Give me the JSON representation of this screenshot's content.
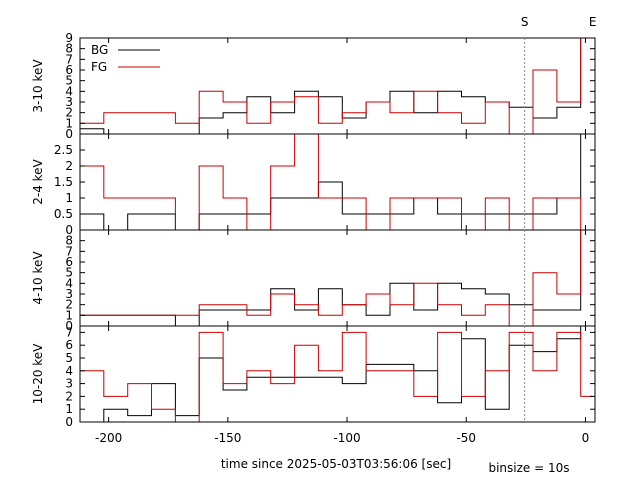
{
  "chart_data": {
    "type": "line",
    "step": true,
    "grid": false,
    "xlabel": "time since 2025-05-03T03:56:06 [sec]",
    "xlim": [
      -212,
      4
    ],
    "xticks": [
      -200,
      -150,
      -100,
      -50,
      0
    ],
    "binsize_label": "binsize = 10s",
    "markers": [
      {
        "label": "S",
        "x": -25.5,
        "style": "dotted",
        "color": "#888888"
      },
      {
        "label": "E",
        "x": 3
      }
    ],
    "legend": {
      "placement": "top-left",
      "panel": 0
    },
    "series_styles": [
      {
        "name": "BG",
        "color": "#000000"
      },
      {
        "name": "FG",
        "color": "#cc0000"
      }
    ],
    "panels": [
      {
        "ylabel": "3-10 keV",
        "ylim": [
          0,
          9
        ],
        "yticks": [
          0,
          1,
          2,
          3,
          4,
          5,
          6,
          7,
          8,
          9
        ],
        "series": [
          {
            "name": "BG",
            "edges": [
              -212,
              -202,
              -172,
              -162,
              -152,
              -142,
              -132,
              -122,
              -112,
              -102,
              -92,
              -82,
              -72,
              -62,
              -52,
              -42,
              -32,
              -22,
              -12,
              -2,
              3
            ],
            "values": [
              0.5,
              0,
              0,
              1.5,
              2,
              3.5,
              2,
              4,
              3.5,
              1.5,
              3,
              4,
              2,
              4,
              3.5,
              3,
              2.5,
              1.5,
              2.5,
              9
            ]
          },
          {
            "name": "FG",
            "edges": [
              -212,
              -202,
              -172,
              -162,
              -152,
              -142,
              -132,
              -122,
              -112,
              -102,
              -92,
              -82,
              -72,
              -62,
              -52,
              -42,
              -32,
              -22,
              -12,
              -2,
              3
            ],
            "values": [
              1,
              2,
              1,
              4,
              3,
              1,
              3,
              3.5,
              1,
              2,
              3,
              2,
              4,
              2,
              1,
              3,
              0,
              6,
              3,
              9
            ]
          }
        ]
      },
      {
        "ylabel": "2-4 keV",
        "ylim": [
          0,
          3
        ],
        "yticks": [
          0,
          0.5,
          1,
          1.5,
          2,
          2.5
        ],
        "series": [
          {
            "name": "BG",
            "edges": [
              -212,
              -202,
              -192,
              -172,
              -162,
              -142,
              -132,
              -112,
              -102,
              -92,
              -72,
              -62,
              -52,
              -42,
              -32,
              -22,
              -12,
              -2,
              3
            ],
            "values": [
              0.5,
              0,
              0.5,
              0,
              0.5,
              0.5,
              1,
              1.5,
              0.5,
              0.5,
              1,
              0.5,
              0.5,
              0.5,
              0.5,
              0.5,
              1,
              3
            ]
          },
          {
            "name": "FG",
            "edges": [
              -212,
              -202,
              -172,
              -162,
              -152,
              -142,
              -132,
              -122,
              -112,
              -102,
              -92,
              -82,
              -72,
              -62,
              -52,
              -42,
              -32,
              -22,
              -12,
              -2,
              3
            ],
            "values": [
              2,
              1,
              0,
              2,
              1,
              0,
              2,
              3,
              1,
              1,
              0,
              1,
              1,
              1,
              0,
              1,
              0,
              1,
              1,
              0
            ]
          }
        ]
      },
      {
        "ylabel": "4-10 keV",
        "ylim": [
          0,
          9
        ],
        "yticks": [
          0,
          1,
          2,
          3,
          4,
          5,
          6,
          7,
          8
        ],
        "series": [
          {
            "name": "BG",
            "edges": [
              -212,
              -172,
              -162,
              -142,
              -132,
              -122,
              -112,
              -102,
              -92,
              -82,
              -72,
              -62,
              -52,
              -42,
              -32,
              -22,
              -12,
              -2,
              3
            ],
            "values": [
              1,
              0,
              1.5,
              1.5,
              3.5,
              1.5,
              3.5,
              2,
              1,
              4,
              1.5,
              4,
              3.5,
              3,
              2,
              1.5,
              1.5,
              9
            ]
          },
          {
            "name": "FG",
            "edges": [
              -212,
              -162,
              -142,
              -132,
              -122,
              -112,
              -102,
              -92,
              -82,
              -72,
              -62,
              -52,
              -42,
              -32,
              -22,
              -12,
              -2,
              3
            ],
            "values": [
              1,
              2,
              1,
              3,
              2,
              1,
              2,
              3,
              2,
              4,
              2,
              1,
              2,
              0,
              5,
              3,
              9
            ]
          }
        ]
      },
      {
        "ylabel": "10-20 keV",
        "ylim": [
          0,
          7.5
        ],
        "yticks": [
          0,
          1,
          2,
          3,
          4,
          5,
          6,
          7
        ],
        "series": [
          {
            "name": "BG",
            "edges": [
              -212,
              -202,
              -192,
              -182,
              -172,
              -162,
              -152,
              -142,
              -132,
              -122,
              -112,
              -102,
              -92,
              -82,
              -72,
              -62,
              -52,
              -42,
              -32,
              -22,
              -12,
              -2,
              3
            ],
            "values": [
              0,
              1,
              0.5,
              3,
              0.5,
              5,
              2.5,
              3.5,
              3.5,
              3.5,
              3.5,
              3,
              4.5,
              4.5,
              4,
              1.5,
              6.5,
              1,
              6,
              5.5,
              6.5,
              7.5
            ]
          },
          {
            "name": "FG",
            "edges": [
              -212,
              -202,
              -192,
              -182,
              -172,
              -162,
              -152,
              -142,
              -132,
              -122,
              -112,
              -102,
              -92,
              -82,
              -72,
              -62,
              -52,
              -42,
              -32,
              -22,
              -12,
              -2,
              3
            ],
            "values": [
              4,
              2,
              3,
              1,
              0,
              7,
              3,
              4,
              3,
              6,
              4,
              7,
              4,
              4,
              2,
              7,
              2,
              4,
              7,
              4,
              7,
              2
            ]
          }
        ]
      }
    ]
  }
}
